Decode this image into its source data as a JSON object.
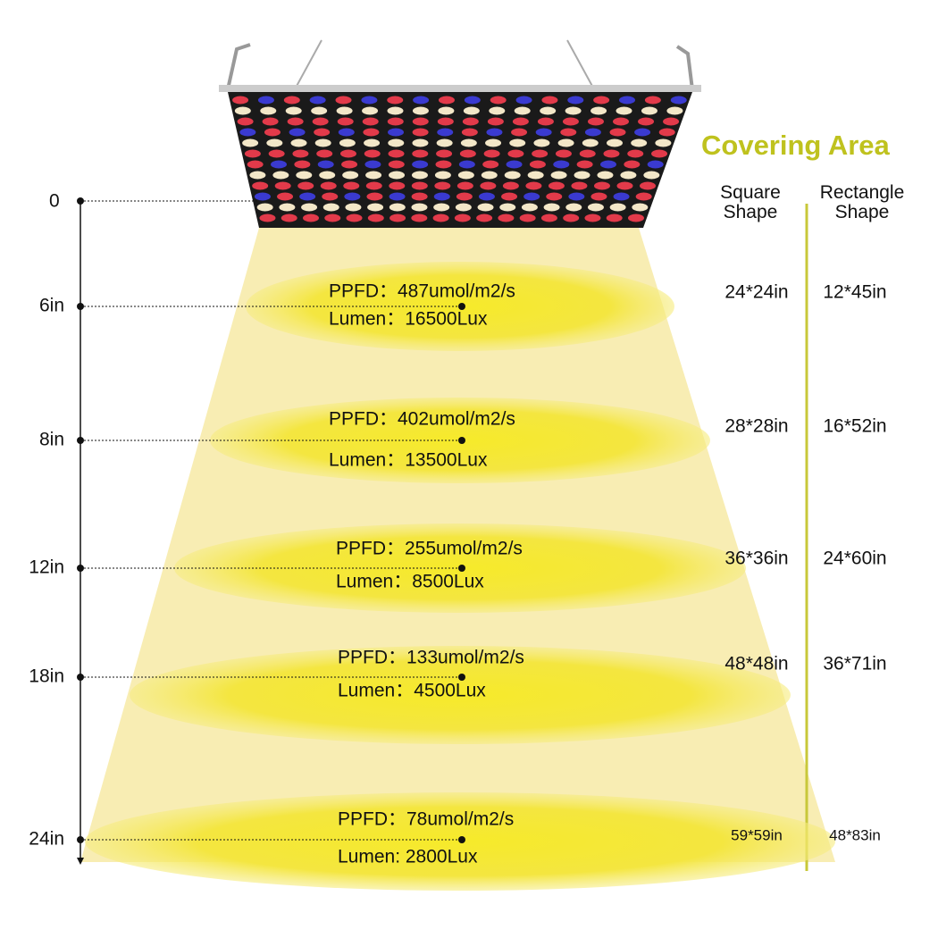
{
  "title": "Covering Area",
  "headers": {
    "square": "Square Shape",
    "rectangle": "Rectangle Shape"
  },
  "zero_label": "0",
  "rows": [
    {
      "height": "6in",
      "ppfd": "PPFD：487umol/m2/s",
      "lumen": "Lumen：16500Lux",
      "square": "24*24in",
      "rectangle": "12*45in"
    },
    {
      "height": "8in",
      "ppfd": "PPFD：402umol/m2/s",
      "lumen": "Lumen：13500Lux",
      "square": "28*28in",
      "rectangle": "16*52in"
    },
    {
      "height": "12in",
      "ppfd": "PPFD：255umol/m2/s",
      "lumen": "Lumen：8500Lux",
      "square": "36*36in",
      "rectangle": "24*60in"
    },
    {
      "height": "18in",
      "ppfd": "PPFD：133umol/m2/s",
      "lumen": "Lumen：4500Lux",
      "square": "48*48in",
      "rectangle": "36*71in"
    },
    {
      "height": "24in",
      "ppfd": "PPFD：78umol/m2/s",
      "lumen": "Lumen: 2800Lux",
      "square": "59*59in",
      "rectangle": "48*83in"
    }
  ]
}
